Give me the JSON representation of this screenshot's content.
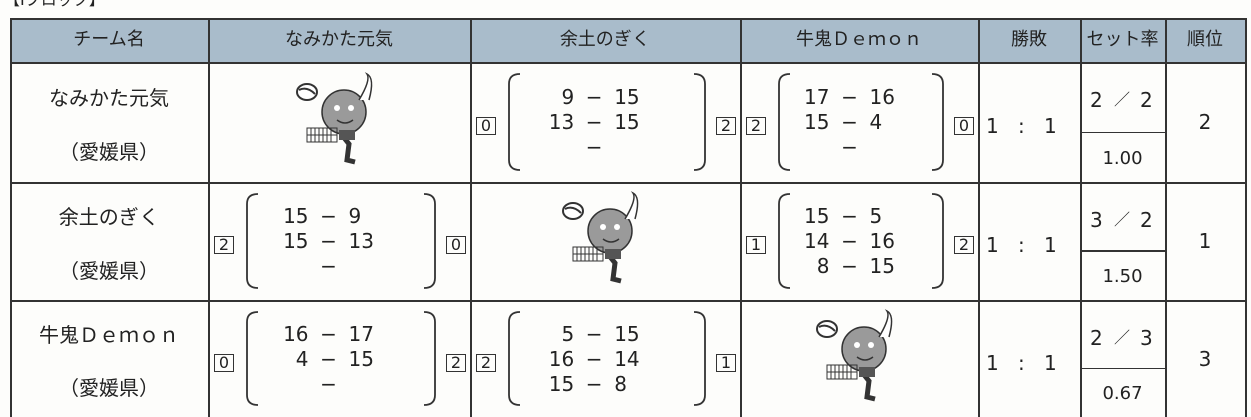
{
  "header": {
    "block": "【Iブロック】"
  },
  "table": {
    "headers": [
      "チーム名",
      "なみかた元気",
      "余土のぎく",
      "牛鬼Ｄｅｍｏｎ",
      "勝敗",
      "セット率",
      "順位"
    ],
    "separators": {
      "record": ":",
      "sets": "／",
      "score": "−"
    },
    "rows": [
      {
        "team": "なみかた元気",
        "pref": "（愛媛県）",
        "matches": [
          null,
          {
            "left": 0,
            "sets": [
              [
                9,
                15
              ],
              [
                13,
                15
              ]
            ],
            "right": 2
          },
          {
            "left": 2,
            "sets": [
              [
                17,
                16
              ],
              [
                15,
                4
              ]
            ],
            "right": 0
          }
        ],
        "won": 1,
        "lost": 1,
        "sets_won": 2,
        "sets_lost": 2,
        "set_rate": "1.00",
        "rank": 2
      },
      {
        "team": "余土のぎく",
        "pref": "（愛媛県）",
        "matches": [
          {
            "left": 2,
            "sets": [
              [
                15,
                9
              ],
              [
                15,
                13
              ]
            ],
            "right": 0
          },
          null,
          {
            "left": 1,
            "sets": [
              [
                15,
                5
              ],
              [
                14,
                16
              ],
              [
                8,
                15
              ]
            ],
            "right": 2
          }
        ],
        "won": 1,
        "lost": 1,
        "sets_won": 3,
        "sets_lost": 2,
        "set_rate": "1.50",
        "rank": 1
      },
      {
        "team": "牛鬼Ｄｅｍｏｎ",
        "pref": "（愛媛県）",
        "matches": [
          {
            "left": 0,
            "sets": [
              [
                16,
                17
              ],
              [
                4,
                15
              ]
            ],
            "right": 2
          },
          {
            "left": 2,
            "sets": [
              [
                5,
                15
              ],
              [
                16,
                14
              ],
              [
                15,
                8
              ]
            ],
            "right": 1
          },
          null
        ],
        "won": 1,
        "lost": 1,
        "sets_won": 2,
        "sets_lost": 3,
        "set_rate": "0.67",
        "rank": 3
      }
    ]
  }
}
